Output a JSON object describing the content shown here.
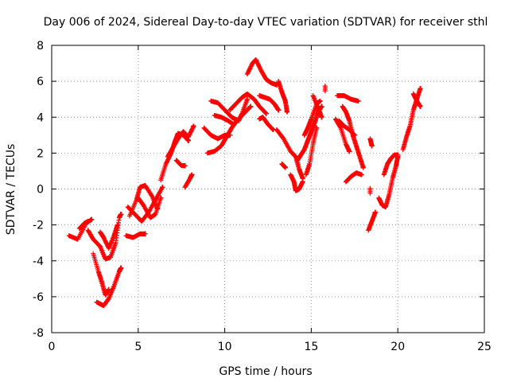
{
  "chart_data": {
    "type": "scatter",
    "title": "Day 006 of 2024, Sidereal Day-to-day VTEC variation (SDTVAR) for receiver sthl",
    "xlabel": "GPS time / hours",
    "ylabel": "SDTVAR / TECUs",
    "xlim": [
      0,
      25
    ],
    "ylim": [
      -8,
      8
    ],
    "xticks": [
      "0",
      "5",
      "10",
      "15",
      "20",
      "25"
    ],
    "yticks": [
      "-8",
      "-6",
      "-4",
      "-2",
      "0",
      "2",
      "4",
      "6",
      "8"
    ],
    "grid": true,
    "marker": "+",
    "color": "#ff0000",
    "tracks": [
      [
        [
          1.0,
          -2.6
        ],
        [
          1.5,
          -2.8
        ],
        [
          2.0,
          -1.9
        ],
        [
          2.3,
          -1.7
        ]
      ],
      [
        [
          1.6,
          -2.2
        ],
        [
          1.9,
          -1.9
        ],
        [
          2.1,
          -1.8
        ]
      ],
      [
        [
          2.1,
          -2.3
        ],
        [
          2.4,
          -2.8
        ],
        [
          2.8,
          -3.2
        ],
        [
          3.1,
          -3.9
        ],
        [
          3.4,
          -3.8
        ],
        [
          3.7,
          -3.0
        ],
        [
          3.9,
          -1.6
        ],
        [
          4.0,
          -1.4
        ]
      ],
      [
        [
          2.4,
          -3.6
        ],
        [
          2.7,
          -4.6
        ],
        [
          2.9,
          -5.2
        ],
        [
          3.1,
          -5.9
        ],
        [
          3.3,
          -5.6
        ]
      ],
      [
        [
          2.6,
          -6.3
        ],
        [
          3.0,
          -6.5
        ],
        [
          3.3,
          -6.1
        ],
        [
          3.6,
          -5.4
        ],
        [
          3.9,
          -4.6
        ],
        [
          4.0,
          -4.4
        ]
      ],
      [
        [
          2.8,
          -2.4
        ],
        [
          3.0,
          -2.7
        ],
        [
          3.3,
          -3.3
        ],
        [
          3.6,
          -2.6
        ],
        [
          3.8,
          -2.0
        ]
      ],
      [
        [
          4.3,
          -2.6
        ],
        [
          4.7,
          -2.7
        ],
        [
          5.1,
          -2.5
        ],
        [
          5.4,
          -2.5
        ]
      ],
      [
        [
          4.4,
          -1.0
        ],
        [
          4.8,
          -1.4
        ],
        [
          5.2,
          -1.8
        ],
        [
          5.6,
          -1.3
        ],
        [
          6.0,
          -0.6
        ],
        [
          6.4,
          0.1
        ]
      ],
      [
        [
          4.5,
          -1.5
        ],
        [
          4.9,
          -0.6
        ],
        [
          5.1,
          0.1
        ],
        [
          5.4,
          0.2
        ],
        [
          5.8,
          -0.4
        ],
        [
          6.1,
          -1.1
        ]
      ],
      [
        [
          5.0,
          -0.5
        ],
        [
          5.3,
          -0.9
        ],
        [
          5.7,
          -1.6
        ],
        [
          6.0,
          -1.4
        ],
        [
          6.3,
          -0.5
        ]
      ],
      [
        [
          6.3,
          0.5
        ],
        [
          6.6,
          1.4
        ],
        [
          6.9,
          2.0
        ],
        [
          7.1,
          2.6
        ],
        [
          7.3,
          3.1
        ],
        [
          7.6,
          3.0
        ],
        [
          7.9,
          2.7
        ]
      ],
      [
        [
          6.7,
          1.8
        ],
        [
          7.0,
          2.3
        ],
        [
          7.3,
          2.8
        ],
        [
          7.6,
          3.2
        ],
        [
          7.9,
          2.9
        ],
        [
          8.2,
          3.5
        ]
      ],
      [
        [
          7.2,
          1.6
        ],
        [
          7.5,
          1.3
        ],
        [
          7.7,
          1.3
        ]
      ],
      [
        [
          7.7,
          0.1
        ],
        [
          8.0,
          0.6
        ],
        [
          8.1,
          0.8
        ]
      ],
      [
        [
          8.8,
          3.4
        ],
        [
          9.2,
          3.0
        ],
        [
          9.6,
          2.8
        ],
        [
          10.0,
          3.0
        ],
        [
          10.3,
          3.0
        ]
      ],
      [
        [
          9.0,
          2.0
        ],
        [
          9.4,
          2.1
        ],
        [
          9.8,
          2.4
        ],
        [
          10.1,
          2.9
        ],
        [
          10.4,
          3.4
        ],
        [
          10.7,
          3.8
        ],
        [
          11.1,
          4.2
        ],
        [
          11.5,
          4.6
        ]
      ],
      [
        [
          9.2,
          4.9
        ],
        [
          9.6,
          4.8
        ],
        [
          10.0,
          4.4
        ],
        [
          10.4,
          4.0
        ],
        [
          10.8,
          3.8
        ],
        [
          11.0,
          4.2
        ],
        [
          11.3,
          5.0
        ]
      ],
      [
        [
          9.4,
          4.1
        ],
        [
          9.8,
          4.0
        ],
        [
          10.2,
          3.8
        ],
        [
          10.5,
          3.6
        ]
      ],
      [
        [
          10.3,
          4.4
        ],
        [
          10.7,
          4.8
        ],
        [
          11.0,
          5.1
        ],
        [
          11.3,
          5.3
        ],
        [
          11.7,
          5.0
        ],
        [
          12.0,
          4.6
        ],
        [
          12.4,
          4.2
        ]
      ],
      [
        [
          11.3,
          6.4
        ],
        [
          11.6,
          7.0
        ],
        [
          11.8,
          7.2
        ],
        [
          12.1,
          6.6
        ],
        [
          12.4,
          6.1
        ],
        [
          12.7,
          5.9
        ],
        [
          13.0,
          5.8
        ]
      ],
      [
        [
          12.0,
          5.2
        ],
        [
          12.3,
          5.1
        ],
        [
          12.6,
          5.0
        ],
        [
          12.9,
          4.7
        ],
        [
          13.1,
          4.4
        ]
      ],
      [
        [
          12.0,
          3.9
        ],
        [
          12.2,
          4.0
        ],
        [
          12.5,
          3.6
        ],
        [
          12.8,
          3.3
        ]
      ],
      [
        [
          13.1,
          6.0
        ],
        [
          13.3,
          5.4
        ],
        [
          13.5,
          4.9
        ],
        [
          13.6,
          4.3
        ]
      ],
      [
        [
          13.0,
          3.3
        ],
        [
          13.4,
          2.8
        ],
        [
          13.8,
          2.1
        ],
        [
          14.1,
          1.8
        ],
        [
          14.3,
          1.1
        ],
        [
          14.5,
          0.6
        ]
      ],
      [
        [
          13.3,
          1.4
        ],
        [
          13.5,
          1.2
        ]
      ],
      [
        [
          13.8,
          0.8
        ],
        [
          14.0,
          0.4
        ],
        [
          14.1,
          -0.1
        ],
        [
          14.3,
          0.0
        ],
        [
          14.5,
          0.4
        ]
      ],
      [
        [
          14.2,
          1.6
        ],
        [
          14.4,
          1.9
        ],
        [
          14.6,
          2.2
        ],
        [
          14.8,
          2.7
        ],
        [
          15.0,
          3.2
        ],
        [
          15.2,
          3.7
        ],
        [
          15.4,
          4.3
        ],
        [
          15.6,
          4.6
        ]
      ],
      [
        [
          14.6,
          3.0
        ],
        [
          14.8,
          3.4
        ],
        [
          15.0,
          3.9
        ],
        [
          15.3,
          4.7
        ],
        [
          15.5,
          4.9
        ]
      ],
      [
        [
          14.7,
          0.8
        ],
        [
          14.9,
          1.4
        ],
        [
          15.1,
          2.5
        ],
        [
          15.3,
          3.4
        ]
      ],
      [
        [
          15.1,
          5.2
        ],
        [
          15.4,
          4.5
        ],
        [
          15.6,
          4.0
        ]
      ],
      [
        [
          15.8,
          5.6
        ]
      ],
      [
        [
          16.5,
          5.2
        ],
        [
          16.9,
          5.2
        ],
        [
          17.3,
          5.0
        ],
        [
          17.7,
          4.9
        ]
      ],
      [
        [
          16.6,
          3.8
        ],
        [
          16.9,
          3.5
        ],
        [
          17.2,
          3.3
        ],
        [
          17.5,
          3.0
        ]
      ],
      [
        [
          16.8,
          4.6
        ],
        [
          17.0,
          4.3
        ],
        [
          17.2,
          3.8
        ],
        [
          17.4,
          3.0
        ],
        [
          17.6,
          2.4
        ],
        [
          17.8,
          1.8
        ],
        [
          18.0,
          1.2
        ]
      ],
      [
        [
          16.4,
          3.9
        ],
        [
          16.7,
          3.4
        ],
        [
          17.0,
          2.5
        ],
        [
          17.2,
          2.1
        ]
      ],
      [
        [
          17.0,
          0.4
        ],
        [
          17.3,
          0.7
        ],
        [
          17.6,
          0.9
        ],
        [
          17.9,
          0.8
        ]
      ],
      [
        [
          18.4,
          2.8
        ],
        [
          18.5,
          2.4
        ]
      ],
      [
        [
          18.4,
          -0.1
        ]
      ],
      [
        [
          18.3,
          -2.3
        ],
        [
          18.5,
          -1.8
        ],
        [
          18.7,
          -1.3
        ]
      ],
      [
        [
          18.9,
          -0.5
        ],
        [
          19.1,
          -0.9
        ],
        [
          19.3,
          -1.0
        ],
        [
          19.5,
          -0.3
        ],
        [
          19.7,
          0.6
        ],
        [
          19.9,
          1.3
        ],
        [
          20.0,
          1.8
        ]
      ],
      [
        [
          19.2,
          0.8
        ],
        [
          19.4,
          1.4
        ],
        [
          19.6,
          1.7
        ],
        [
          19.8,
          1.9
        ],
        [
          20.0,
          1.9
        ]
      ],
      [
        [
          20.3,
          2.2
        ],
        [
          20.5,
          2.9
        ],
        [
          20.7,
          3.5
        ],
        [
          20.9,
          4.4
        ],
        [
          21.1,
          5.0
        ],
        [
          21.3,
          5.6
        ]
      ],
      [
        [
          20.9,
          5.3
        ],
        [
          21.1,
          4.9
        ],
        [
          21.3,
          4.6
        ]
      ]
    ]
  }
}
